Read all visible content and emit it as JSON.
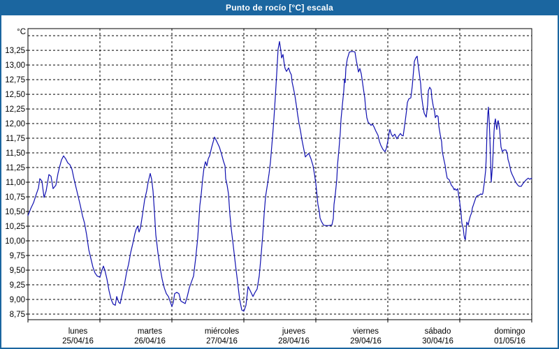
{
  "window": {
    "title": "Punto de rocío [°C] escala"
  },
  "colors": {
    "titlebar_bg": "#1b66a0",
    "frame_border": "#1b66a0",
    "line_color": "#1010b0",
    "grid_color": "#000000",
    "plot_bg": "#ffffff"
  },
  "chart_data": {
    "type": "line",
    "title": "Punto de rocío [°C] escala",
    "ylabel": "°C",
    "series_name": "Punto de rocío",
    "grid": true,
    "legend_position": "none",
    "ylim": [
      8.655,
      13.62
    ],
    "yticks": [
      8.75,
      9.0,
      9.25,
      9.5,
      9.75,
      10.0,
      10.25,
      10.5,
      10.75,
      11.0,
      11.25,
      11.5,
      11.75,
      12.0,
      12.25,
      12.5,
      12.75,
      13.0,
      13.25
    ],
    "unlabeled_gridlines": [
      13.5
    ],
    "ytick_decimal_separator": ",",
    "xlim_days": [
      0,
      7
    ],
    "x_days": [
      {
        "name": "lunes",
        "date": "25/04/16"
      },
      {
        "name": "martes",
        "date": "26/04/16"
      },
      {
        "name": "miércoles",
        "date": "27/04/16"
      },
      {
        "name": "jueves",
        "date": "28/04/16"
      },
      {
        "name": "viernes",
        "date": "29/04/16"
      },
      {
        "name": "sábado",
        "date": "30/04/16"
      },
      {
        "name": "domingo",
        "date": "01/05/16"
      }
    ],
    "points": [
      [
        0.0,
        10.43
      ],
      [
        0.039,
        10.55
      ],
      [
        0.078,
        10.65
      ],
      [
        0.117,
        10.8
      ],
      [
        0.146,
        10.9
      ],
      [
        0.165,
        11.06
      ],
      [
        0.194,
        11.02
      ],
      [
        0.223,
        10.74
      ],
      [
        0.252,
        10.85
      ],
      [
        0.291,
        11.13
      ],
      [
        0.32,
        11.1
      ],
      [
        0.35,
        10.89
      ],
      [
        0.388,
        10.95
      ],
      [
        0.417,
        11.15
      ],
      [
        0.437,
        11.25
      ],
      [
        0.466,
        11.38
      ],
      [
        0.495,
        11.45
      ],
      [
        0.524,
        11.4
      ],
      [
        0.553,
        11.33
      ],
      [
        0.583,
        11.3
      ],
      [
        0.612,
        11.22
      ],
      [
        0.641,
        11.05
      ],
      [
        0.67,
        10.9
      ],
      [
        0.699,
        10.75
      ],
      [
        0.728,
        10.6
      ],
      [
        0.757,
        10.43
      ],
      [
        0.786,
        10.3
      ],
      [
        0.816,
        10.1
      ],
      [
        0.845,
        9.85
      ],
      [
        0.874,
        9.7
      ],
      [
        0.903,
        9.55
      ],
      [
        0.932,
        9.45
      ],
      [
        0.961,
        9.4
      ],
      [
        1.0,
        9.38
      ],
      [
        1.029,
        9.5
      ],
      [
        1.049,
        9.57
      ],
      [
        1.068,
        9.5
      ],
      [
        1.097,
        9.35
      ],
      [
        1.126,
        9.15
      ],
      [
        1.155,
        9.0
      ],
      [
        1.184,
        8.92
      ],
      [
        1.214,
        8.9
      ],
      [
        1.233,
        9.05
      ],
      [
        1.262,
        8.95
      ],
      [
        1.282,
        8.93
      ],
      [
        1.311,
        9.1
      ],
      [
        1.34,
        9.25
      ],
      [
        1.369,
        9.45
      ],
      [
        1.398,
        9.6
      ],
      [
        1.427,
        9.8
      ],
      [
        1.456,
        9.95
      ],
      [
        1.485,
        10.12
      ],
      [
        1.505,
        10.2
      ],
      [
        1.524,
        10.25
      ],
      [
        1.544,
        10.15
      ],
      [
        1.563,
        10.22
      ],
      [
        1.592,
        10.45
      ],
      [
        1.621,
        10.7
      ],
      [
        1.65,
        10.85
      ],
      [
        1.67,
        11.0
      ],
      [
        1.699,
        11.15
      ],
      [
        1.718,
        11.05
      ],
      [
        1.738,
        10.85
      ],
      [
        1.757,
        10.5
      ],
      [
        1.777,
        10.1
      ],
      [
        1.806,
        9.8
      ],
      [
        1.835,
        9.55
      ],
      [
        1.864,
        9.35
      ],
      [
        1.893,
        9.2
      ],
      [
        1.922,
        9.1
      ],
      [
        1.951,
        9.05
      ],
      [
        1.981,
        8.95
      ],
      [
        2.0,
        8.88
      ],
      [
        2.019,
        8.95
      ],
      [
        2.039,
        9.1
      ],
      [
        2.068,
        9.12
      ],
      [
        2.097,
        9.1
      ],
      [
        2.126,
        8.97
      ],
      [
        2.155,
        8.95
      ],
      [
        2.184,
        8.93
      ],
      [
        2.214,
        9.05
      ],
      [
        2.243,
        9.2
      ],
      [
        2.272,
        9.3
      ],
      [
        2.301,
        9.4
      ],
      [
        2.33,
        9.7
      ],
      [
        2.359,
        10.05
      ],
      [
        2.388,
        10.6
      ],
      [
        2.408,
        10.8
      ],
      [
        2.427,
        11.05
      ],
      [
        2.447,
        11.25
      ],
      [
        2.466,
        11.35
      ],
      [
        2.485,
        11.28
      ],
      [
        2.505,
        11.4
      ],
      [
        2.524,
        11.45
      ],
      [
        2.553,
        11.6
      ],
      [
        2.592,
        11.77
      ],
      [
        2.621,
        11.7
      ],
      [
        2.66,
        11.6
      ],
      [
        2.689,
        11.48
      ],
      [
        2.718,
        11.35
      ],
      [
        2.738,
        11.28
      ],
      [
        2.748,
        11.06
      ],
      [
        2.767,
        10.95
      ],
      [
        2.786,
        10.8
      ],
      [
        2.806,
        10.45
      ],
      [
        2.825,
        10.2
      ],
      [
        2.854,
        9.9
      ],
      [
        2.883,
        9.6
      ],
      [
        2.913,
        9.3
      ],
      [
        2.942,
        9.0
      ],
      [
        2.971,
        8.82
      ],
      [
        3.0,
        8.8
      ],
      [
        3.029,
        8.9
      ],
      [
        3.058,
        9.22
      ],
      [
        3.087,
        9.15
      ],
      [
        3.126,
        9.05
      ],
      [
        3.155,
        9.12
      ],
      [
        3.184,
        9.18
      ],
      [
        3.214,
        9.4
      ],
      [
        3.243,
        9.8
      ],
      [
        3.262,
        10.1
      ],
      [
        3.282,
        10.45
      ],
      [
        3.301,
        10.75
      ],
      [
        3.33,
        10.98
      ],
      [
        3.35,
        11.15
      ],
      [
        3.369,
        11.34
      ],
      [
        3.398,
        11.77
      ],
      [
        3.417,
        12.08
      ],
      [
        3.437,
        12.45
      ],
      [
        3.456,
        12.85
      ],
      [
        3.476,
        13.27
      ],
      [
        3.495,
        13.4
      ],
      [
        3.515,
        13.24
      ],
      [
        3.524,
        13.12
      ],
      [
        3.544,
        13.18
      ],
      [
        3.563,
        13.0
      ],
      [
        3.573,
        12.94
      ],
      [
        3.592,
        12.89
      ],
      [
        3.621,
        12.95
      ],
      [
        3.641,
        12.88
      ],
      [
        3.66,
        12.83
      ],
      [
        3.67,
        12.71
      ],
      [
        3.689,
        12.6
      ],
      [
        3.709,
        12.48
      ],
      [
        3.728,
        12.32
      ],
      [
        3.748,
        12.15
      ],
      [
        3.767,
        12.0
      ],
      [
        3.786,
        11.88
      ],
      [
        3.806,
        11.73
      ],
      [
        3.835,
        11.55
      ],
      [
        3.854,
        11.43
      ],
      [
        3.883,
        11.47
      ],
      [
        3.903,
        11.49
      ],
      [
        3.932,
        11.4
      ],
      [
        3.961,
        11.28
      ],
      [
        3.981,
        11.14
      ],
      [
        4.0,
        10.98
      ],
      [
        4.01,
        10.86
      ],
      [
        4.029,
        10.62
      ],
      [
        4.049,
        10.5
      ],
      [
        4.058,
        10.39
      ],
      [
        4.078,
        10.33
      ],
      [
        4.107,
        10.27
      ],
      [
        4.136,
        10.26
      ],
      [
        4.175,
        10.26
      ],
      [
        4.223,
        10.27
      ],
      [
        4.243,
        10.38
      ],
      [
        4.252,
        10.62
      ],
      [
        4.272,
        10.81
      ],
      [
        4.291,
        11.05
      ],
      [
        4.301,
        11.29
      ],
      [
        4.32,
        11.55
      ],
      [
        4.34,
        11.85
      ],
      [
        4.35,
        12.08
      ],
      [
        4.369,
        12.32
      ],
      [
        4.388,
        12.56
      ],
      [
        4.398,
        12.76
      ],
      [
        4.408,
        12.7
      ],
      [
        4.417,
        12.95
      ],
      [
        4.437,
        13.1
      ],
      [
        4.466,
        13.22
      ],
      [
        4.495,
        13.23
      ],
      [
        4.524,
        13.23
      ],
      [
        4.544,
        13.22
      ],
      [
        4.563,
        13.07
      ],
      [
        4.583,
        12.95
      ],
      [
        4.592,
        12.88
      ],
      [
        4.612,
        12.94
      ],
      [
        4.631,
        12.85
      ],
      [
        4.641,
        12.77
      ],
      [
        4.66,
        12.6
      ],
      [
        4.68,
        12.44
      ],
      [
        4.689,
        12.3
      ],
      [
        4.709,
        12.1
      ],
      [
        4.728,
        12.02
      ],
      [
        4.748,
        12.0
      ],
      [
        4.767,
        11.97
      ],
      [
        4.786,
        11.99
      ],
      [
        4.806,
        11.95
      ],
      [
        4.835,
        11.87
      ],
      [
        4.864,
        11.8
      ],
      [
        4.883,
        11.7
      ],
      [
        4.903,
        11.63
      ],
      [
        4.932,
        11.56
      ],
      [
        4.961,
        11.52
      ],
      [
        4.981,
        11.58
      ],
      [
        5.0,
        11.7
      ],
      [
        5.019,
        11.85
      ],
      [
        5.029,
        11.9
      ],
      [
        5.049,
        11.82
      ],
      [
        5.068,
        11.78
      ],
      [
        5.097,
        11.82
      ],
      [
        5.126,
        11.74
      ],
      [
        5.146,
        11.78
      ],
      [
        5.175,
        11.83
      ],
      [
        5.194,
        11.8
      ],
      [
        5.214,
        11.79
      ],
      [
        5.243,
        12.05
      ],
      [
        5.262,
        12.24
      ],
      [
        5.272,
        12.36
      ],
      [
        5.291,
        12.42
      ],
      [
        5.32,
        12.44
      ],
      [
        5.34,
        12.64
      ],
      [
        5.359,
        12.92
      ],
      [
        5.369,
        13.06
      ],
      [
        5.388,
        13.12
      ],
      [
        5.408,
        13.15
      ],
      [
        5.417,
        13.04
      ],
      [
        5.437,
        12.86
      ],
      [
        5.456,
        12.68
      ],
      [
        5.466,
        12.5
      ],
      [
        5.485,
        12.32
      ],
      [
        5.505,
        12.18
      ],
      [
        5.534,
        12.11
      ],
      [
        5.553,
        12.32
      ],
      [
        5.563,
        12.56
      ],
      [
        5.583,
        12.62
      ],
      [
        5.602,
        12.58
      ],
      [
        5.612,
        12.44
      ],
      [
        5.631,
        12.3
      ],
      [
        5.65,
        12.2
      ],
      [
        5.66,
        12.1
      ],
      [
        5.68,
        12.14
      ],
      [
        5.699,
        12.12
      ],
      [
        5.709,
        11.96
      ],
      [
        5.728,
        11.81
      ],
      [
        5.748,
        11.69
      ],
      [
        5.757,
        11.52
      ],
      [
        5.777,
        11.4
      ],
      [
        5.796,
        11.29
      ],
      [
        5.806,
        11.2
      ],
      [
        5.825,
        11.07
      ],
      [
        5.854,
        11.04
      ],
      [
        5.883,
        10.95
      ],
      [
        5.903,
        10.92
      ],
      [
        5.922,
        10.87
      ],
      [
        5.932,
        10.89
      ],
      [
        5.951,
        10.86
      ],
      [
        5.971,
        10.89
      ],
      [
        5.981,
        10.81
      ],
      [
        6.0,
        10.65
      ],
      [
        6.019,
        10.45
      ],
      [
        6.029,
        10.3
      ],
      [
        6.049,
        10.21
      ],
      [
        6.058,
        10.1
      ],
      [
        6.068,
        10.04
      ],
      [
        6.078,
        10.02
      ],
      [
        6.097,
        10.32
      ],
      [
        6.117,
        10.27
      ],
      [
        6.126,
        10.33
      ],
      [
        6.146,
        10.42
      ],
      [
        6.165,
        10.48
      ],
      [
        6.175,
        10.56
      ],
      [
        6.194,
        10.63
      ],
      [
        6.214,
        10.7
      ],
      [
        6.223,
        10.74
      ],
      [
        6.243,
        10.77
      ],
      [
        6.272,
        10.78
      ],
      [
        6.291,
        10.8
      ],
      [
        6.311,
        10.79
      ],
      [
        6.32,
        10.81
      ],
      [
        6.34,
        10.98
      ],
      [
        6.359,
        11.2
      ],
      [
        6.369,
        11.45
      ],
      [
        6.379,
        11.9
      ],
      [
        6.388,
        12.14
      ],
      [
        6.398,
        12.28
      ],
      [
        6.408,
        12.06
      ],
      [
        6.417,
        11.79
      ],
      [
        6.427,
        11.4
      ],
      [
        6.437,
        11.0
      ],
      [
        6.456,
        11.31
      ],
      [
        6.466,
        11.58
      ],
      [
        6.476,
        11.86
      ],
      [
        6.485,
        12.02
      ],
      [
        6.495,
        12.08
      ],
      [
        6.505,
        11.98
      ],
      [
        6.515,
        11.9
      ],
      [
        6.524,
        12.02
      ],
      [
        6.534,
        12.05
      ],
      [
        6.553,
        11.9
      ],
      [
        6.563,
        11.75
      ],
      [
        6.573,
        11.6
      ],
      [
        6.592,
        11.52
      ],
      [
        6.612,
        11.55
      ],
      [
        6.641,
        11.55
      ],
      [
        6.66,
        11.49
      ],
      [
        6.67,
        11.39
      ],
      [
        6.689,
        11.31
      ],
      [
        6.709,
        11.19
      ],
      [
        6.728,
        11.13
      ],
      [
        6.748,
        11.08
      ],
      [
        6.777,
        11.0
      ],
      [
        6.806,
        10.95
      ],
      [
        6.825,
        10.93
      ],
      [
        6.854,
        10.93
      ],
      [
        6.874,
        10.97
      ],
      [
        6.893,
        11.0
      ],
      [
        6.922,
        11.04
      ],
      [
        6.951,
        11.07
      ],
      [
        6.971,
        11.05
      ],
      [
        7.0,
        11.07
      ]
    ]
  }
}
